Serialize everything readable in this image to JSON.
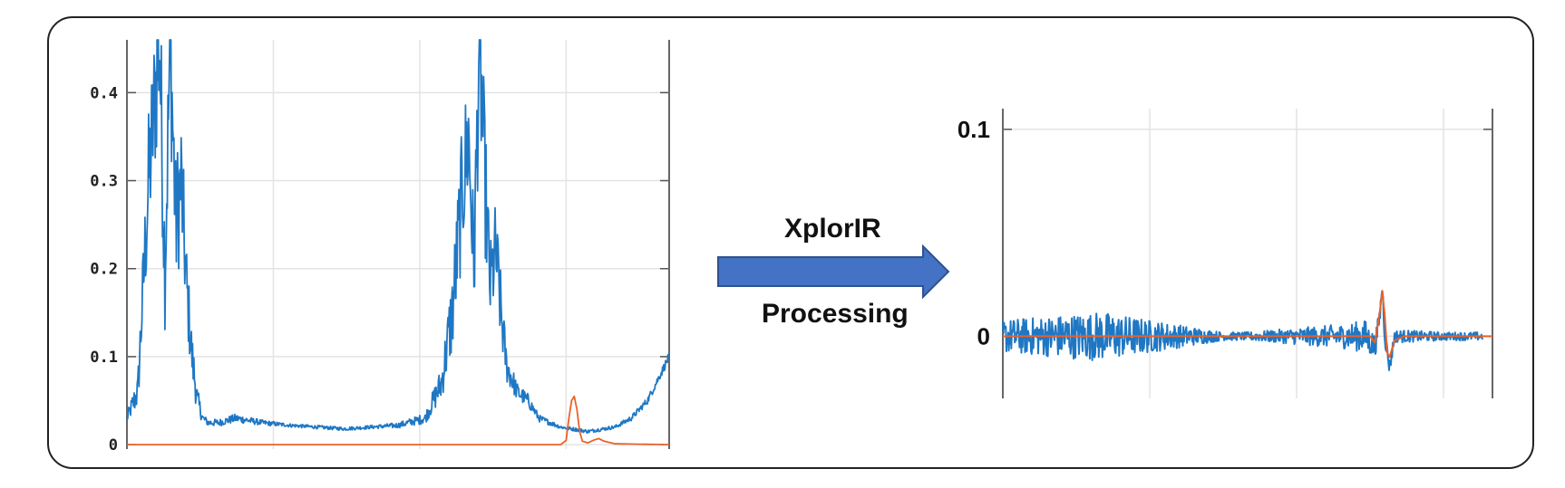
{
  "annotation": {
    "top": "XplorIR",
    "bottom": "Processing",
    "arrow_color": "#4472c4"
  },
  "colors": {
    "series_blue": "#1f77c4",
    "series_orange": "#e8622a",
    "grid": "#e3e3e3",
    "frame": "#222222"
  },
  "chart_data": [
    {
      "type": "line",
      "title": "",
      "xlabel": "",
      "ylabel": "",
      "ylim": [
        -0.005,
        0.46
      ],
      "xlim": [
        0,
        1
      ],
      "grid": true,
      "yticks": [
        "0",
        "0.1",
        "0.2",
        "0.3",
        "0.4"
      ],
      "ytick_values": [
        0,
        0.1,
        0.2,
        0.3,
        0.4
      ],
      "series": [
        {
          "color": "#1f77c4",
          "style": "noisy",
          "x": [
            0,
            0.02,
            0.04,
            0.06,
            0.07,
            0.08,
            0.09,
            0.1,
            0.11,
            0.12,
            0.13,
            0.14,
            0.15,
            0.17,
            0.2,
            0.25,
            0.3,
            0.35,
            0.4,
            0.45,
            0.5,
            0.55,
            0.58,
            0.6,
            0.62,
            0.63,
            0.64,
            0.65,
            0.66,
            0.67,
            0.68,
            0.69,
            0.7,
            0.72,
            0.74,
            0.76,
            0.8,
            0.85,
            0.9,
            0.93,
            0.96,
            1.0
          ],
          "y": [
            0.03,
            0.06,
            0.3,
            0.46,
            0.2,
            0.46,
            0.25,
            0.3,
            0.18,
            0.1,
            0.05,
            0.03,
            0.025,
            0.025,
            0.03,
            0.025,
            0.022,
            0.02,
            0.018,
            0.02,
            0.022,
            0.03,
            0.07,
            0.15,
            0.3,
            0.35,
            0.2,
            0.46,
            0.3,
            0.18,
            0.22,
            0.15,
            0.09,
            0.06,
            0.05,
            0.03,
            0.02,
            0.015,
            0.02,
            0.03,
            0.05,
            0.1
          ],
          "noise": [
            0.005,
            0.02,
            0.08,
            0.1,
            0.07,
            0.1,
            0.08,
            0.08,
            0.05,
            0.03,
            0.015,
            0.005,
            0.004,
            0.004,
            0.005,
            0.003,
            0.002,
            0.002,
            0.002,
            0.002,
            0.003,
            0.006,
            0.02,
            0.05,
            0.08,
            0.08,
            0.06,
            0.1,
            0.08,
            0.05,
            0.06,
            0.04,
            0.02,
            0.01,
            0.008,
            0.004,
            0.002,
            0.002,
            0.002,
            0.003,
            0.004,
            0.005
          ]
        },
        {
          "color": "#e8622a",
          "style": "smooth",
          "x": [
            0,
            0.5,
            0.8,
            0.81,
            0.815,
            0.82,
            0.825,
            0.83,
            0.835,
            0.84,
            0.85,
            0.86,
            0.87,
            0.88,
            0.9,
            1.0
          ],
          "y": [
            0.0,
            0.0,
            0.0,
            0.005,
            0.03,
            0.05,
            0.055,
            0.04,
            0.015,
            0.004,
            0.002,
            0.005,
            0.007,
            0.004,
            0.001,
            0.0
          ]
        }
      ]
    },
    {
      "type": "line",
      "title": "",
      "xlabel": "",
      "ylabel": "",
      "ylim": [
        -0.03,
        0.11
      ],
      "xlim": [
        0,
        1
      ],
      "grid": true,
      "yticks": [
        "0",
        "0.1"
      ],
      "ytick_values": [
        0,
        0.1
      ],
      "series": [
        {
          "color": "#1f77c4",
          "style": "noisy",
          "x": [
            0,
            0.1,
            0.2,
            0.3,
            0.4,
            0.45,
            0.5,
            0.6,
            0.7,
            0.74,
            0.76,
            0.77,
            0.775,
            0.78,
            0.79,
            0.8,
            0.82,
            0.9,
            0.95,
            0.98
          ],
          "y": [
            0,
            0,
            0,
            0,
            0,
            0,
            0,
            0,
            0,
            0,
            -0.005,
            0.01,
            0.025,
            0.0,
            -0.015,
            0.0,
            0.0,
            0.0,
            0.0,
            0.0
          ],
          "noise": [
            0.008,
            0.01,
            0.012,
            0.008,
            0.004,
            0.002,
            0.002,
            0.004,
            0.006,
            0.008,
            0.006,
            0.004,
            0.004,
            0.004,
            0.004,
            0.003,
            0.003,
            0.002,
            0.002,
            0.002
          ]
        },
        {
          "color": "#e8622a",
          "style": "smooth",
          "x": [
            0,
            0.7,
            0.75,
            0.76,
            0.77,
            0.775,
            0.78,
            0.785,
            0.79,
            0.8,
            0.82,
            1.0
          ],
          "y": [
            0,
            0,
            0,
            -0.003,
            0.012,
            0.022,
            0.01,
            -0.008,
            -0.01,
            -0.002,
            0,
            0
          ]
        }
      ]
    }
  ]
}
